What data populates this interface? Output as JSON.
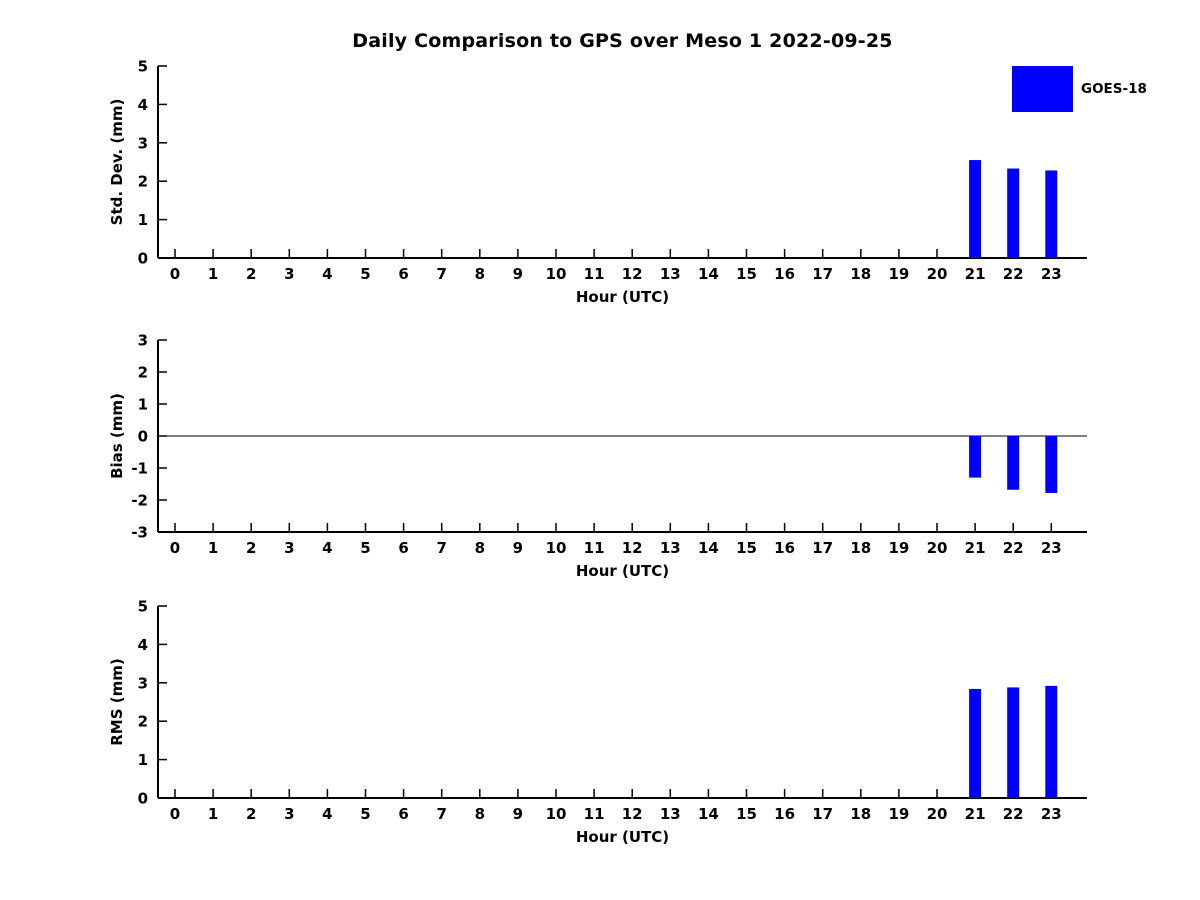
{
  "title": "Daily Comparison to GPS over Meso 1 2022-09-25",
  "legend": {
    "label": "GOES-18",
    "color": "#0000ff"
  },
  "chart_data": {
    "type": "bar",
    "title": "Daily Comparison to GPS over Meso 1 2022-09-25",
    "xlabel": "Hour (UTC)",
    "x": [
      0,
      1,
      2,
      3,
      4,
      5,
      6,
      7,
      8,
      9,
      10,
      11,
      12,
      13,
      14,
      15,
      16,
      17,
      18,
      19,
      20,
      21,
      22,
      23
    ],
    "legend_position": "upper right",
    "grid": false,
    "subplots": [
      {
        "ylabel": "Std. Dev. (mm)",
        "ylim": [
          0,
          5
        ],
        "yticks": [
          0,
          1,
          2,
          3,
          4,
          5
        ],
        "zero_line": false,
        "series": [
          {
            "name": "GOES-18",
            "color": "#0000ff",
            "points": [
              {
                "x": 21,
                "y": 2.55
              },
              {
                "x": 22,
                "y": 2.33
              },
              {
                "x": 23,
                "y": 2.28
              }
            ]
          }
        ]
      },
      {
        "ylabel": "Bias (mm)",
        "ylim": [
          -3,
          3
        ],
        "yticks": [
          -3,
          -2,
          -1,
          0,
          1,
          2,
          3
        ],
        "zero_line": true,
        "series": [
          {
            "name": "GOES-18",
            "color": "#0000ff",
            "points": [
              {
                "x": 21,
                "y": -1.3
              },
              {
                "x": 22,
                "y": -1.68
              },
              {
                "x": 23,
                "y": -1.78
              }
            ]
          }
        ]
      },
      {
        "ylabel": "RMS (mm)",
        "ylim": [
          0,
          5
        ],
        "yticks": [
          0,
          1,
          2,
          3,
          4,
          5
        ],
        "zero_line": false,
        "series": [
          {
            "name": "GOES-18",
            "color": "#0000ff",
            "points": [
              {
                "x": 21,
                "y": 2.84
              },
              {
                "x": 22,
                "y": 2.88
              },
              {
                "x": 23,
                "y": 2.92
              }
            ]
          }
        ]
      }
    ]
  }
}
